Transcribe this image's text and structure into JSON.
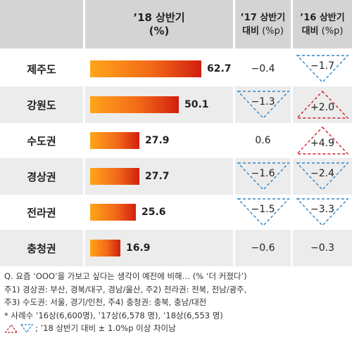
{
  "header": {
    "col_bar_line1": "’18 상반기",
    "col_bar_line2": "(%)",
    "col_y17_line1": "’17 상반기",
    "col_y17_line2_a": "대비",
    "col_y17_line2_b": " (%p)",
    "col_y16_line1": "’16 상반기",
    "col_y16_line2_a": "대비",
    "col_y16_line2_b": " (%p)"
  },
  "chart_data": {
    "type": "bar",
    "categories": [
      "제주도",
      "강원도",
      "수도권",
      "경상권",
      "전라권",
      "충청권"
    ],
    "values": [
      62.7,
      50.1,
      27.9,
      27.7,
      25.6,
      16.9
    ],
    "value_labels": [
      "62.7",
      "50.1",
      "27.9",
      "27.7",
      "25.6",
      "16.9"
    ],
    "change_vs_2017": [
      {
        "text": "−0.4",
        "marker": "none"
      },
      {
        "text": "−1.3",
        "marker": "down"
      },
      {
        "text": "0.6",
        "marker": "none"
      },
      {
        "text": "−1.6",
        "marker": "down"
      },
      {
        "text": "−1.5",
        "marker": "down"
      },
      {
        "text": "−0.6",
        "marker": "none"
      }
    ],
    "change_vs_2016": [
      {
        "text": "−1.7",
        "marker": "down"
      },
      {
        "text": "+2.0",
        "marker": "up"
      },
      {
        "text": "+4.9",
        "marker": "up"
      },
      {
        "text": "−2.4",
        "marker": "down"
      },
      {
        "text": "−3.3",
        "marker": "down"
      },
      {
        "text": "−0.3",
        "marker": "none"
      }
    ],
    "colors": {
      "bar_start": "#ffa51a",
      "bar_end": "#d11f10",
      "up_marker": "#d0202a",
      "down_marker": "#2e86c8"
    }
  },
  "notes": {
    "line1": "Q. 요즘 ‘OOO’을 가보고 싶다는 생각이 예전에 비해… (% ‘더 커졌다’)",
    "line2": "주1) 경상권: 부산, 경북/대구, 경남/울산,  주2) 전라권: 전북, 전남/광주,",
    "line3": "주3) 수도권: 서울, 경기/인천, 주4) 충청권: 충북, 충남/대전",
    "line4": "* 사례수 ’16상(6,600명), ’17상(6,578 명), ’18상(6,553 명)",
    "legend_text": "; ’18 상반기 대비 ± 1.0%p 이상 차이남"
  }
}
